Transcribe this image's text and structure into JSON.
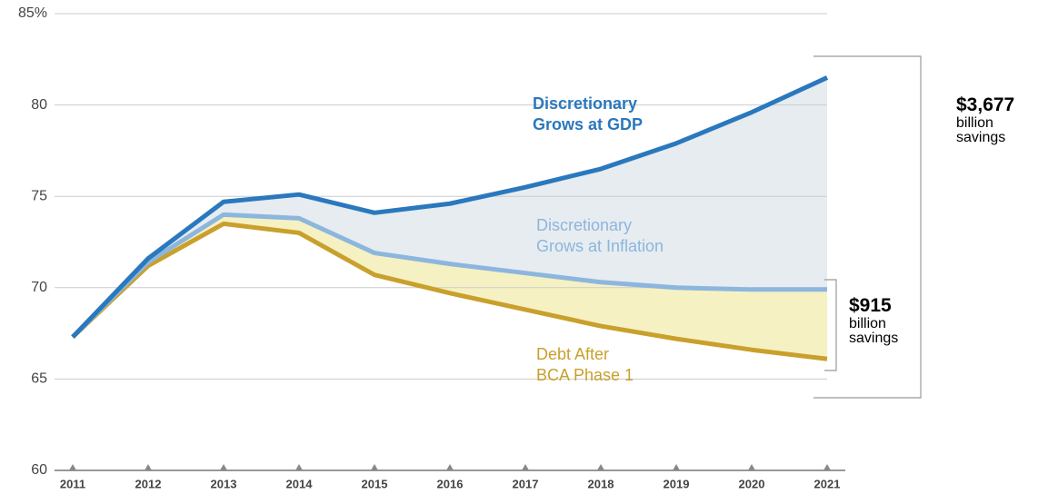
{
  "chart_data": {
    "type": "line",
    "x": [
      2011,
      2012,
      2013,
      2014,
      2015,
      2016,
      2017,
      2018,
      2019,
      2020,
      2021
    ],
    "xlim": [
      2011,
      2021
    ],
    "xticks": [
      2011,
      2012,
      2013,
      2014,
      2015,
      2016,
      2017,
      2018,
      2019,
      2020,
      2021
    ],
    "ylim": [
      60,
      85
    ],
    "yticks": [
      60,
      65,
      70,
      75,
      80,
      {
        "value": 85,
        "label": "85%"
      }
    ],
    "grid": true,
    "fill_colors": [
      "#e6ecf0",
      "#f6f1c3"
    ],
    "series": [
      {
        "name": "Discretionary\nGrows at GDP",
        "color": "#2a78bd",
        "values": [
          67.3,
          71.6,
          74.7,
          75.1,
          74.1,
          74.6,
          75.5,
          76.5,
          77.9,
          79.6,
          81.5
        ]
      },
      {
        "name": "Discretionary\nGrows at Inflation",
        "color": "#8cb6de",
        "values": [
          67.3,
          71.4,
          74.0,
          73.8,
          71.9,
          71.3,
          70.8,
          70.3,
          70.0,
          69.9,
          69.9
        ]
      },
      {
        "name": "Debt After\nBCA Phase 1",
        "color": "#c9a02c",
        "values": [
          67.3,
          71.2,
          73.5,
          73.0,
          70.7,
          69.7,
          68.8,
          67.9,
          67.2,
          66.6,
          66.1
        ]
      }
    ],
    "annotations": [
      {
        "amount": "$3,677",
        "text": "billion\nsavings"
      },
      {
        "amount": "$915",
        "text": "billion\nsavings"
      }
    ]
  }
}
